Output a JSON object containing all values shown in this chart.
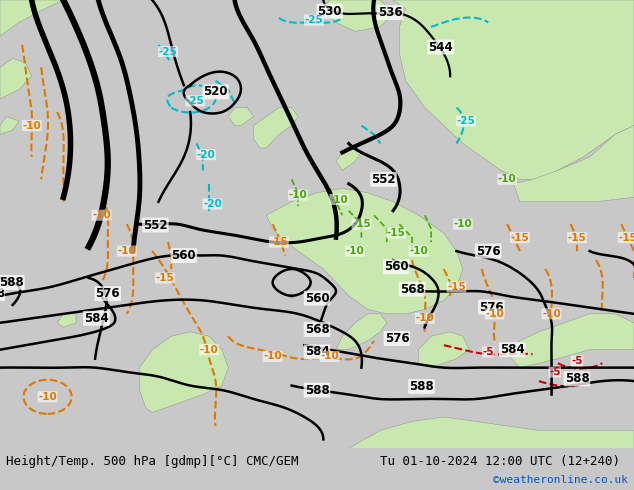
{
  "title_left": "Height/Temp. 500 hPa [gdmp][°C] CMC/GEM",
  "title_right": "Tu 01-10-2024 12:00 UTC (12+240)",
  "credit": "©weatheronline.co.uk",
  "bg_color": "#c8c8c8",
  "land_green_color": "#c8e8b0",
  "fig_width": 6.34,
  "fig_height": 4.9,
  "dpi": 100,
  "bottom_bar_color": "#e8e8e8",
  "title_fontsize": 9.0,
  "credit_fontsize": 8,
  "credit_color": "#0055cc"
}
